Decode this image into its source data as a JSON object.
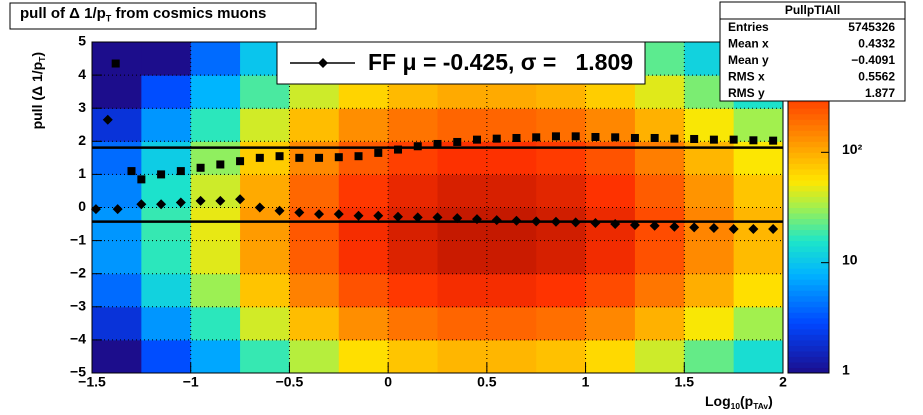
{
  "chart_data": {
    "type": "heatmap",
    "title": [
      "pull of Δ 1/p",
      "T",
      " from cosmics muons"
    ],
    "x_label": [
      "Log",
      "10",
      "(p",
      "TAv",
      ")"
    ],
    "y_label": [
      "pull (Δ 1/p",
      "T",
      ")"
    ],
    "xlim": [
      -1.5,
      2
    ],
    "ylim": [
      -5,
      5
    ],
    "zlim": [
      1,
      1000
    ],
    "z_log": true,
    "grid": true,
    "xticks": [
      {
        "value": -1.5,
        "label": "−1.5"
      },
      {
        "value": -1,
        "label": "−1"
      },
      {
        "value": -0.5,
        "label": "−0.5"
      },
      0,
      0.5,
      1,
      1.5,
      2
    ],
    "yticks": [
      {
        "value": -5,
        "label": "−5"
      },
      {
        "value": -4,
        "label": "−4"
      },
      {
        "value": -3,
        "label": "−3"
      },
      {
        "value": -2,
        "label": "−2"
      },
      {
        "value": -1,
        "label": "−1"
      },
      0,
      1,
      2,
      3,
      4,
      5
    ],
    "zticks": [
      1,
      10,
      {
        "value": 100,
        "label": "10²"
      }
    ],
    "xbins": [
      -1.5,
      -1.25,
      -1,
      -0.75,
      -0.5,
      -0.25,
      0,
      0.25,
      0.5,
      0.75,
      1,
      1.25,
      1.5,
      1.75,
      2
    ],
    "ybins": [
      -5,
      -4,
      -3,
      -2,
      -1,
      0,
      1,
      2,
      3,
      4,
      5
    ],
    "z": [
      [
        1,
        3,
        7,
        18,
        36,
        59,
        77,
        90,
        90,
        81,
        63,
        41,
        23,
        14
      ],
      [
        2,
        6,
        17,
        42,
        84,
        137,
        179,
        210,
        210,
        189,
        147,
        95,
        53,
        32
      ],
      [
        4,
        12,
        31,
        78,
        156,
        254,
        332,
        390,
        390,
        351,
        273,
        176,
        98,
        59
      ],
      [
        6,
        17,
        46,
        114,
        228,
        371,
        485,
        570,
        570,
        513,
        399,
        257,
        143,
        86
      ],
      [
        6,
        18,
        48,
        120,
        240,
        390,
        510,
        600,
        600,
        540,
        420,
        270,
        150,
        90
      ],
      [
        5,
        15,
        41,
        102,
        204,
        332,
        434,
        510,
        510,
        459,
        357,
        230,
        128,
        77
      ],
      [
        4,
        11,
        29,
        72,
        144,
        234,
        306,
        360,
        360,
        324,
        252,
        162,
        90,
        54
      ],
      [
        2,
        6,
        17,
        42,
        84,
        137,
        179,
        210,
        210,
        189,
        147,
        95,
        53,
        32
      ],
      [
        1,
        3,
        8,
        20,
        41,
        66,
        87,
        102,
        102,
        92,
        71,
        46,
        26,
        15
      ],
      [
        1,
        1,
        4,
        10,
        19,
        31,
        41,
        48,
        48,
        43,
        34,
        22,
        12,
        7
      ]
    ],
    "series": [
      {
        "marker": "diamond",
        "color": "#000000",
        "x": [
          -1.48,
          -1.42,
          -1.37,
          -1.25,
          -1.15,
          -1.05,
          -0.95,
          -0.85,
          -0.75,
          -0.65,
          -0.55,
          -0.45,
          -0.35,
          -0.25,
          -0.15,
          -0.05,
          0.05,
          0.15,
          0.25,
          0.35,
          0.45,
          0.55,
          0.65,
          0.75,
          0.85,
          0.95,
          1.05,
          1.15,
          1.25,
          1.35,
          1.45,
          1.55,
          1.65,
          1.75,
          1.85,
          1.95
        ],
        "values": [
          -0.05,
          2.65,
          -0.05,
          0.1,
          0.1,
          0.15,
          0.2,
          0.2,
          0.25,
          0.0,
          -0.1,
          -0.15,
          -0.2,
          -0.2,
          -0.25,
          -0.25,
          -0.28,
          -0.3,
          -0.3,
          -0.32,
          -0.35,
          -0.38,
          -0.4,
          -0.42,
          -0.43,
          -0.45,
          -0.47,
          -0.5,
          -0.53,
          -0.55,
          -0.58,
          -0.6,
          -0.62,
          -0.65,
          -0.65,
          -0.65
        ]
      },
      {
        "marker": "square",
        "color": "#000000",
        "x": [
          -1.38,
          -1.3,
          -1.25,
          -1.15,
          -1.05,
          -0.95,
          -0.85,
          -0.75,
          -0.65,
          -0.55,
          -0.45,
          -0.35,
          -0.25,
          -0.15,
          -0.05,
          0.05,
          0.15,
          0.25,
          0.35,
          0.45,
          0.55,
          0.65,
          0.75,
          0.85,
          0.95,
          1.05,
          1.15,
          1.25,
          1.35,
          1.45,
          1.55,
          1.65,
          1.75,
          1.85,
          1.95
        ],
        "values": [
          4.35,
          1.1,
          0.85,
          1.0,
          1.1,
          1.2,
          1.3,
          1.4,
          1.5,
          1.55,
          1.5,
          1.5,
          1.52,
          1.55,
          1.65,
          1.75,
          1.85,
          1.92,
          1.98,
          2.05,
          2.08,
          2.1,
          2.12,
          2.15,
          2.15,
          2.13,
          2.12,
          2.1,
          2.1,
          2.08,
          2.07,
          2.05,
          2.05,
          2.03,
          2.02
        ]
      }
    ],
    "mean_line": -0.425,
    "sigma_line": 1.809,
    "legend": "FF μ = -0.425, σ =   1.809",
    "stats": {
      "title": "PullpTIAll",
      "rows": [
        [
          "Entries",
          "5745326"
        ],
        [
          "Mean x",
          "0.4332"
        ],
        [
          "Mean y",
          "−0.4091"
        ],
        [
          "RMS x",
          "0.5562"
        ],
        [
          "RMS y",
          "1.877"
        ]
      ]
    }
  }
}
